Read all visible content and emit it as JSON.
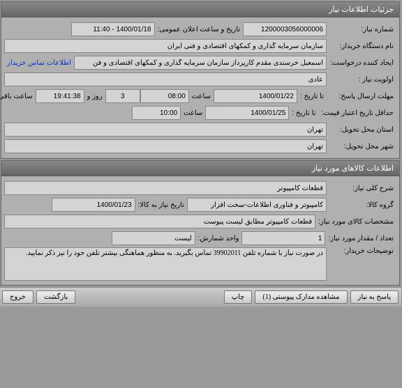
{
  "panel1": {
    "title": "جزئیات اطلاعات نیاز",
    "need_number_label": "شماره نیاز:",
    "need_number": "1200003056000006",
    "public_date_label": "تاریخ و ساعت اعلان عمومی:",
    "public_date": "1400/01/18 - 11:40",
    "buyer_label": "نام دستگاه خریدار:",
    "buyer": "سازمان سرمایه گذاری و کمکهای اقتصادی و فنی ایران",
    "creator_label": "ایجاد کننده درخواست:",
    "creator": "اسمعیل خرسندی مقدم کارپرداز سازمان سرمایه گذاری و کمکهای اقتصادی و فن",
    "buyer_contact_link": "اطلاعات تماس خریدار",
    "priority_label": "اولویت نیاز :",
    "priority": "عادی",
    "deadline_label": "مهلت ارسال پاسخ:",
    "deadline_to_label": "تا تاریخ :",
    "deadline_date": "1400/01/22",
    "deadline_time_label": "ساعت",
    "deadline_time": "08:00",
    "days_remaining": "3",
    "days_label": "روز و",
    "time_remaining": "19:41:38",
    "remaining_label": "ساعت باقی مانده",
    "credit_label": "حداقل تاریخ اعتبار قیمت:",
    "credit_to_label": "تا تاریخ :",
    "credit_date": "1400/01/25",
    "credit_time_label": "ساعت",
    "credit_time": "10:00",
    "delivery_province_label": "استان محل تحویل:",
    "delivery_province": "تهران",
    "delivery_city_label": "شهر محل تحویل:",
    "delivery_city": "تهران"
  },
  "panel2": {
    "title": "اطلاعات کالاهای مورد نیاز",
    "desc_label": "شرح کلی نیاز:",
    "desc": "قطعات کامپیوتر",
    "group_label": "گروه کالا:",
    "group": "کامپیوتر و فناوری اطلاعات-سخت افزار",
    "need_until_label": "تاریخ نیاز به کالا:",
    "need_until": "1400/01/23",
    "spec_label": "مشخصات کالای مورد نیاز:",
    "spec": "قطعات کامپیوتر مطابق لیست پیوست",
    "qty_label": "تعداد / مقدار مورد نیاز:",
    "qty": "1",
    "unit_label": "واحد شمارش:",
    "unit": "لیست",
    "buyer_note_label": "توضیحات خریدار:",
    "buyer_note": "در صورت نیاز با شماره تلفن 39902011 تماس بگیرید. به منظور هماهنگی بیشتر تلفن خود را نیز ذکر نمایید."
  },
  "buttons": {
    "reply": "پاسخ به نیاز",
    "attachments": "مشاهده مدارک پیوستی (1)",
    "print": "چاپ",
    "back": "بازگشت",
    "exit": "خروج"
  }
}
